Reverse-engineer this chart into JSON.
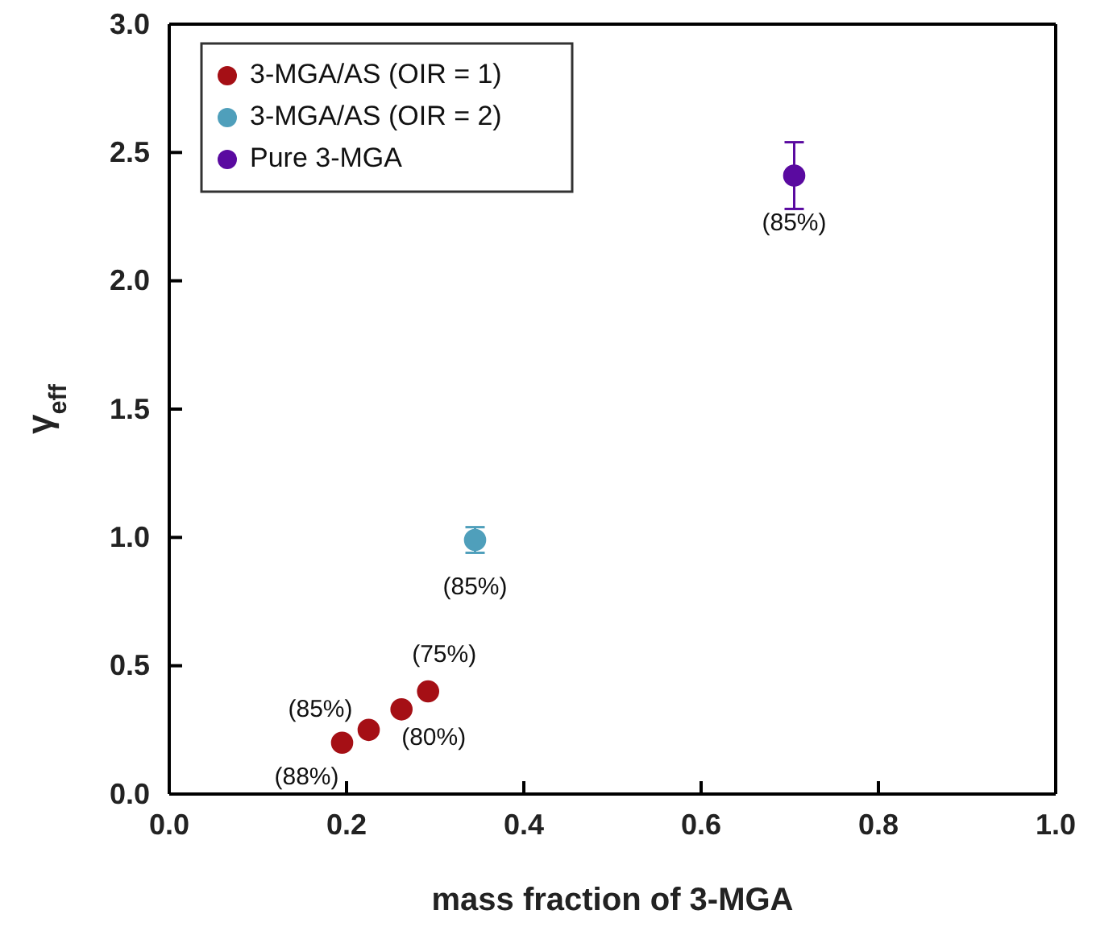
{
  "chart_data": {
    "type": "scatter",
    "xlabel": "mass fraction of 3-MGA",
    "ylabel": "γ$_{eff}$",
    "xlim": [
      0,
      1
    ],
    "xticks": [
      {
        "value": 0,
        "label": "0.0"
      },
      0.2,
      0.4,
      0.6,
      0.8,
      {
        "value": 1,
        "label": "1.0"
      }
    ],
    "ylim": [
      0,
      3
    ],
    "yticks": [
      {
        "value": 0,
        "label": "0.0"
      },
      0.5,
      {
        "value": 1,
        "label": "1.0"
      },
      1.5,
      {
        "value": 2,
        "label": "2.0"
      },
      2.5,
      {
        "value": 3,
        "label": "3.0"
      }
    ],
    "series": [
      {
        "name": "3-MGA/AS (OIR = 1)",
        "color": "#a50f15",
        "x": [
          0.195,
          0.225,
          0.262,
          0.292
        ],
        "values": [
          0.2,
          0.25,
          0.33,
          0.4
        ]
      },
      {
        "name": "3-MGA/AS (OIR = 2)",
        "color": "#4f9fbb",
        "x": [
          0.345
        ],
        "values": [
          0.99
        ],
        "errors": [
          0.05
        ]
      },
      {
        "name": "Pure 3-MGA",
        "color": "#5a0aa0",
        "x": [
          0.705
        ],
        "values": [
          2.41
        ],
        "errors": [
          0.13
        ]
      }
    ],
    "annotations": [
      {
        "text": "(88%)",
        "x": 0.195,
        "y": 0.2
      },
      {
        "text": "(85%)",
        "x": 0.225,
        "y": 0.25
      },
      {
        "text": "(80%)",
        "x": 0.262,
        "y": 0.33
      },
      {
        "text": "(75%)",
        "x": 0.292,
        "y": 0.4
      },
      {
        "text": "(85%)",
        "x": 0.345,
        "y": 0.99
      },
      {
        "text": "(85%)",
        "x": 0.705,
        "y": 2.41
      }
    ],
    "legend": "top left",
    "marker": "circle",
    "grid": false
  }
}
